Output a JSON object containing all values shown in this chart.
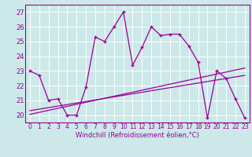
{
  "xlabel": "Windchill (Refroidissement éolien,°C)",
  "bg_color": "#cce8e8",
  "line_color": "#990099",
  "xlim": [
    -0.5,
    23.5
  ],
  "ylim": [
    19.5,
    27.5
  ],
  "yticks": [
    20,
    21,
    22,
    23,
    24,
    25,
    26,
    27
  ],
  "xticks": [
    0,
    1,
    2,
    3,
    4,
    5,
    6,
    7,
    8,
    9,
    10,
    11,
    12,
    13,
    14,
    15,
    16,
    17,
    18,
    19,
    20,
    21,
    22,
    23
  ],
  "series1_x": [
    0,
    1,
    2,
    3,
    4,
    5,
    6,
    7,
    8,
    9,
    10,
    11,
    12,
    13,
    14,
    15,
    16,
    17,
    18,
    19,
    20,
    21,
    22,
    23
  ],
  "series1_y": [
    23.0,
    22.7,
    21.0,
    21.1,
    20.0,
    20.0,
    21.9,
    25.3,
    25.0,
    26.0,
    27.0,
    23.4,
    24.6,
    26.0,
    25.4,
    25.5,
    25.5,
    24.7,
    23.6,
    19.8,
    23.0,
    22.5,
    21.1,
    19.8
  ],
  "line2_x": [
    0,
    23
  ],
  "line2_y": [
    20.05,
    23.2
  ],
  "line3_x": [
    0,
    23
  ],
  "line3_y": [
    20.3,
    22.7
  ]
}
